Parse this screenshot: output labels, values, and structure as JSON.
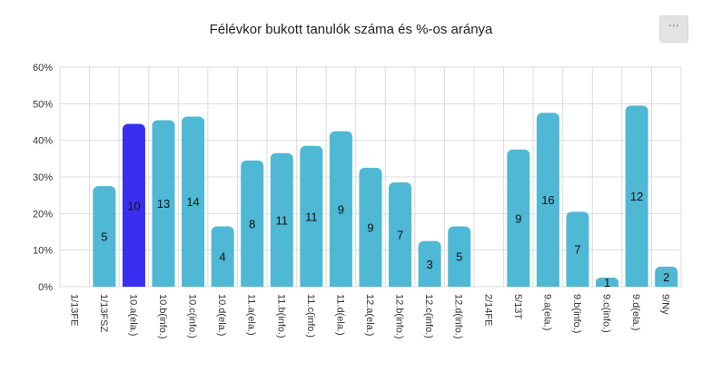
{
  "chart_data": {
    "type": "bar",
    "title": "Félévkor bukott tanulók száma és %-os aránya",
    "categories": [
      "1/13FE",
      "1/13FSZ",
      "10.a(ela.)",
      "10.b(info.)",
      "10.c(info.)",
      "10.d(ela.)",
      "11.a(ela.)",
      "11.b(info.)",
      "11.c(info.)",
      "11.d(ela.)",
      "12.a(ela.)",
      "12.b(info.)",
      "12.c(info.)",
      "12.d(info.)",
      "2/14FE",
      "5/13T",
      "9.a(ela.)",
      "9.b(info.)",
      "9.c(info.)",
      "9.d(ela.)",
      "9/Ny"
    ],
    "values": [
      0,
      27.5,
      44.5,
      45.5,
      46.5,
      16.5,
      34.5,
      36.5,
      38.5,
      42.5,
      32.5,
      28.5,
      12.5,
      16.5,
      0,
      37.5,
      47.5,
      20.5,
      2.5,
      49.5,
      5.5
    ],
    "counts": [
      "",
      "5",
      "10",
      "13",
      "14",
      "4",
      "8",
      "11",
      "11",
      "9",
      "9",
      "7",
      "3",
      "5",
      "",
      "9",
      "16",
      "7",
      "1",
      "12",
      "2"
    ],
    "highlight_index": 2,
    "colors": {
      "bar": "#4fb8d4",
      "highlight": "#3a2ff0",
      "grid": "#dcdcdc"
    },
    "yticks": [
      "0%",
      "10%",
      "20%",
      "30%",
      "40%",
      "50%",
      "60%"
    ],
    "ylim": [
      0,
      60
    ],
    "xlabel": "",
    "ylabel": "",
    "grid": true,
    "legend": "none"
  },
  "menu": {
    "icon": "ellipsis-icon",
    "label": "···"
  }
}
